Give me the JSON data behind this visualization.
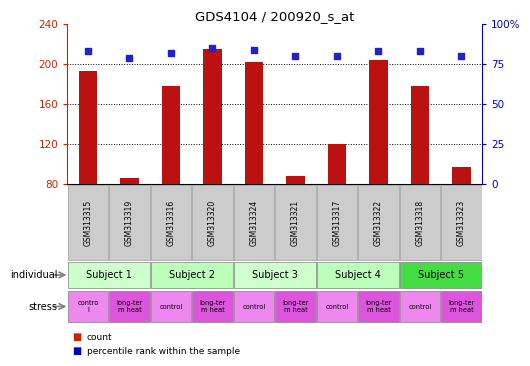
{
  "title": "GDS4104 / 200920_s_at",
  "samples": [
    "GSM313315",
    "GSM313319",
    "GSM313316",
    "GSM313320",
    "GSM313324",
    "GSM313321",
    "GSM313317",
    "GSM313322",
    "GSM313318",
    "GSM313323"
  ],
  "counts": [
    193,
    86,
    178,
    215,
    202,
    88,
    120,
    204,
    178,
    97
  ],
  "percentile_ranks": [
    83,
    79,
    82,
    85,
    84,
    80,
    80,
    83,
    83,
    80
  ],
  "ylim_left": [
    80,
    240
  ],
  "ylim_right": [
    0,
    100
  ],
  "yticks_left": [
    80,
    120,
    160,
    200,
    240
  ],
  "yticks_right": [
    0,
    25,
    50,
    75,
    100
  ],
  "subjects": [
    {
      "label": "Subject 1",
      "span": [
        0,
        2
      ],
      "color": "#ccffcc"
    },
    {
      "label": "Subject 2",
      "span": [
        2,
        4
      ],
      "color": "#bbffbb"
    },
    {
      "label": "Subject 3",
      "span": [
        4,
        6
      ],
      "color": "#ccffcc"
    },
    {
      "label": "Subject 4",
      "span": [
        6,
        8
      ],
      "color": "#bbffbb"
    },
    {
      "label": "Subject 5",
      "span": [
        8,
        10
      ],
      "color": "#44dd44"
    }
  ],
  "stress": [
    {
      "label": "contro\nl",
      "span": [
        0,
        1
      ],
      "color": "#ee88ee"
    },
    {
      "label": "long-ter\nm heat",
      "span": [
        1,
        2
      ],
      "color": "#dd55dd"
    },
    {
      "label": "control",
      "span": [
        2,
        3
      ],
      "color": "#ee88ee"
    },
    {
      "label": "long-ter\nm heat",
      "span": [
        3,
        4
      ],
      "color": "#dd55dd"
    },
    {
      "label": "control",
      "span": [
        4,
        5
      ],
      "color": "#ee88ee"
    },
    {
      "label": "long-ter\nm heat",
      "span": [
        5,
        6
      ],
      "color": "#dd55dd"
    },
    {
      "label": "control",
      "span": [
        6,
        7
      ],
      "color": "#ee88ee"
    },
    {
      "label": "long-ter\nm heat",
      "span": [
        7,
        8
      ],
      "color": "#dd55dd"
    },
    {
      "label": "control",
      "span": [
        8,
        9
      ],
      "color": "#ee88ee"
    },
    {
      "label": "long-ter\nm heat",
      "span": [
        9,
        10
      ],
      "color": "#dd55dd"
    }
  ],
  "bar_color": "#bb1111",
  "dot_color": "#2222cc",
  "bar_width": 0.45,
  "left_axis_color": "#cc2200",
  "right_axis_color": "#0000cc",
  "sample_bg_color": "#cccccc",
  "sample_border_color": "#999999",
  "legend_count_color": "#cc2200",
  "legend_dot_color": "#0000cc"
}
